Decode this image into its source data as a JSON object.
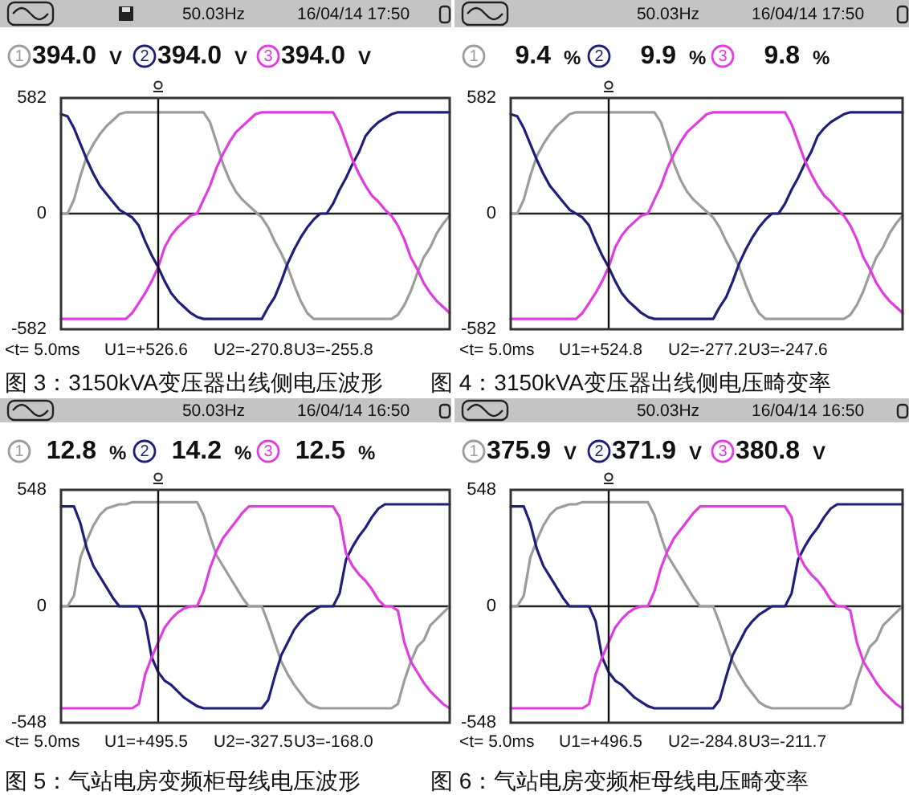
{
  "chart_data": [
    {
      "type": "line",
      "title": "图 3：3150kVA变压器出线侧电压波形",
      "categories": [
        null,
        null,
        null,
        null,
        null,
        null,
        null,
        null,
        null,
        null,
        null,
        null,
        null,
        null,
        null,
        null,
        null,
        null,
        null,
        null,
        null,
        null,
        null,
        null,
        null,
        null,
        null,
        null,
        null,
        null,
        null,
        null,
        null,
        null,
        null,
        null,
        null,
        null,
        null,
        null,
        null,
        null,
        null,
        null,
        null,
        null,
        null,
        null,
        null,
        null,
        null,
        null,
        null,
        null,
        null,
        null,
        null,
        null,
        null,
        null,
        null
      ],
      "series": [
        {
          "name": "1",
          "color": "#9c9c9c",
          "values": [
            0,
            0,
            70,
            190,
            290,
            350,
            400,
            440,
            470,
            500,
            510,
            510,
            510,
            510,
            510,
            510,
            510,
            510,
            510,
            510,
            510,
            510,
            510,
            460,
            360,
            250,
            170,
            110,
            70,
            40,
            10,
            -20,
            -70,
            -140,
            -200,
            -270,
            -360,
            -440,
            -500,
            -530,
            -530,
            -530,
            -530,
            -530,
            -530,
            -530,
            -530,
            -530,
            -530,
            -530,
            -530,
            -530,
            -510,
            -460,
            -390,
            -300,
            -220,
            -170,
            -100,
            -50,
            -10
          ]
        },
        {
          "name": "2",
          "color": "#1f1f7a",
          "values": [
            500,
            490,
            430,
            350,
            270,
            200,
            140,
            100,
            60,
            20,
            0,
            -20,
            -60,
            -140,
            -210,
            -270,
            -340,
            -400,
            -440,
            -470,
            -500,
            -520,
            -530,
            -530,
            -530,
            -530,
            -530,
            -530,
            -530,
            -530,
            -530,
            -530,
            -470,
            -420,
            -340,
            -250,
            -180,
            -120,
            -70,
            -30,
            0,
            0,
            50,
            120,
            180,
            250,
            310,
            390,
            430,
            460,
            480,
            500,
            510,
            510,
            510,
            510,
            510,
            510,
            510,
            510,
            510
          ]
        },
        {
          "name": "3",
          "color": "#e03ce0",
          "values": [
            -530,
            -530,
            -530,
            -530,
            -530,
            -530,
            -530,
            -530,
            -530,
            -530,
            -530,
            -500,
            -450,
            -400,
            -340,
            -270,
            -170,
            -110,
            -70,
            -40,
            -10,
            0,
            70,
            140,
            230,
            300,
            360,
            410,
            440,
            470,
            500,
            510,
            510,
            510,
            510,
            510,
            510,
            510,
            510,
            510,
            510,
            510,
            510,
            450,
            360,
            270,
            200,
            140,
            90,
            60,
            20,
            -10,
            -60,
            -130,
            -220,
            -280,
            -350,
            -400,
            -440,
            -470,
            -500
          ]
        }
      ],
      "ylim": [
        -582,
        582
      ],
      "yticks": [
        -582,
        0,
        582
      ],
      "tick_labels": "y",
      "legend": "top",
      "annotations": [
        "50.03Hz",
        "16/04/14 17:50",
        "394.0 V",
        "394.0 V",
        "394.0 V",
        "<t= 5.0ms",
        "U1=+526.6",
        "U2=-270.8",
        "U3=-255.8"
      ]
    },
    {
      "type": "line",
      "title": "图 4：3150kVA变压器出线侧电压畸变率",
      "categories": [
        null,
        null,
        null,
        null,
        null,
        null,
        null,
        null,
        null,
        null,
        null,
        null,
        null,
        null,
        null,
        null,
        null,
        null,
        null,
        null,
        null,
        null,
        null,
        null,
        null,
        null,
        null,
        null,
        null,
        null,
        null,
        null,
        null,
        null,
        null,
        null,
        null,
        null,
        null,
        null,
        null,
        null,
        null,
        null,
        null,
        null,
        null,
        null,
        null,
        null,
        null,
        null,
        null,
        null,
        null,
        null,
        null,
        null,
        null,
        null,
        null
      ],
      "series": [
        {
          "name": "1",
          "color": "#9c9c9c",
          "values": [
            0,
            0,
            70,
            190,
            290,
            350,
            400,
            440,
            470,
            500,
            510,
            510,
            510,
            510,
            510,
            510,
            510,
            510,
            510,
            510,
            510,
            510,
            510,
            460,
            360,
            250,
            170,
            110,
            70,
            40,
            10,
            -20,
            -70,
            -140,
            -200,
            -270,
            -360,
            -440,
            -500,
            -530,
            -530,
            -530,
            -530,
            -530,
            -530,
            -530,
            -530,
            -530,
            -530,
            -530,
            -530,
            -530,
            -510,
            -460,
            -390,
            -300,
            -220,
            -170,
            -100,
            -50,
            -10
          ]
        },
        {
          "name": "2",
          "color": "#1f1f7a",
          "values": [
            500,
            490,
            430,
            350,
            270,
            200,
            140,
            100,
            60,
            20,
            0,
            -20,
            -60,
            -140,
            -210,
            -270,
            -340,
            -400,
            -440,
            -470,
            -500,
            -520,
            -530,
            -530,
            -530,
            -530,
            -530,
            -530,
            -530,
            -530,
            -530,
            -530,
            -470,
            -420,
            -340,
            -250,
            -180,
            -120,
            -70,
            -30,
            0,
            0,
            50,
            120,
            180,
            250,
            310,
            390,
            430,
            460,
            480,
            500,
            510,
            510,
            510,
            510,
            510,
            510,
            510,
            510,
            510
          ]
        },
        {
          "name": "3",
          "color": "#e03ce0",
          "values": [
            -530,
            -530,
            -530,
            -530,
            -530,
            -530,
            -530,
            -530,
            -530,
            -530,
            -530,
            -500,
            -450,
            -400,
            -340,
            -270,
            -170,
            -110,
            -70,
            -40,
            -10,
            0,
            70,
            140,
            230,
            300,
            360,
            410,
            440,
            470,
            500,
            510,
            510,
            510,
            510,
            510,
            510,
            510,
            510,
            510,
            510,
            510,
            510,
            450,
            360,
            270,
            200,
            140,
            90,
            60,
            20,
            -10,
            -60,
            -130,
            -220,
            -280,
            -350,
            -400,
            -440,
            -470,
            -500
          ]
        }
      ],
      "ylim": [
        -582,
        582
      ],
      "yticks": [
        -582,
        0,
        582
      ],
      "tick_labels": "y",
      "legend": "top",
      "annotations": [
        "50.03Hz",
        "16/04/14 17:50",
        "9.4 %",
        "9.9 %",
        "9.8 %",
        "<t= 5.0ms",
        "U1=+524.8",
        "U2=-277.2",
        "U3=-247.6"
      ]
    },
    {
      "type": "line",
      "title": "图 5：气站电房变频柜母线电压波形",
      "categories": [
        null,
        null,
        null,
        null,
        null,
        null,
        null,
        null,
        null,
        null,
        null,
        null,
        null,
        null,
        null,
        null,
        null,
        null,
        null,
        null,
        null,
        null,
        null,
        null,
        null,
        null,
        null,
        null,
        null,
        null,
        null,
        null,
        null,
        null,
        null,
        null,
        null,
        null,
        null,
        null,
        null,
        null,
        null,
        null,
        null,
        null,
        null,
        null,
        null,
        null,
        null,
        null,
        null,
        null,
        null,
        null,
        null,
        null,
        null,
        null,
        null
      ],
      "series": [
        {
          "name": "1",
          "color": "#9c9c9c",
          "values": [
            0,
            0,
            50,
            230,
            310,
            380,
            430,
            460,
            470,
            480,
            480,
            490,
            490,
            490,
            490,
            490,
            490,
            490,
            490,
            490,
            490,
            490,
            430,
            330,
            240,
            190,
            140,
            90,
            40,
            0,
            0,
            0,
            -80,
            -170,
            -260,
            -320,
            -370,
            -410,
            -450,
            -470,
            -480,
            -480,
            -480,
            -480,
            -480,
            -480,
            -480,
            -480,
            -480,
            -480,
            -480,
            -480,
            -460,
            -350,
            -260,
            -190,
            -160,
            -90,
            -60,
            -30,
            0
          ]
        },
        {
          "name": "2",
          "color": "#1f1f7a",
          "values": [
            470,
            470,
            470,
            390,
            270,
            190,
            140,
            90,
            40,
            0,
            0,
            0,
            0,
            -70,
            -240,
            -310,
            -350,
            -370,
            -400,
            -430,
            -450,
            -470,
            -480,
            -480,
            -480,
            -480,
            -480,
            -480,
            -480,
            -480,
            -480,
            -480,
            -440,
            -330,
            -230,
            -170,
            -110,
            -70,
            -40,
            -20,
            0,
            0,
            0,
            60,
            220,
            280,
            330,
            370,
            420,
            460,
            480,
            480,
            480,
            480,
            480,
            480,
            480,
            480,
            480,
            480,
            480
          ]
        },
        {
          "name": "3",
          "color": "#e03ce0",
          "values": [
            -480,
            -480,
            -480,
            -480,
            -480,
            -480,
            -480,
            -480,
            -480,
            -480,
            -480,
            -480,
            -460,
            -320,
            -240,
            -170,
            -100,
            -60,
            -30,
            -10,
            0,
            0,
            70,
            180,
            260,
            320,
            360,
            400,
            440,
            470,
            470,
            470,
            470,
            470,
            470,
            470,
            470,
            470,
            470,
            470,
            470,
            470,
            470,
            420,
            250,
            190,
            150,
            120,
            80,
            30,
            0,
            0,
            -20,
            -170,
            -260,
            -310,
            -360,
            -400,
            -430,
            -460,
            -480
          ]
        }
      ],
      "ylim": [
        -548,
        548
      ],
      "yticks": [
        -548,
        0,
        548
      ],
      "tick_labels": "y",
      "legend": "top",
      "annotations": [
        "50.03Hz",
        "16/04/14 16:50",
        "12.8 %",
        "14.2 %",
        "12.5 %",
        "<t= 5.0ms",
        "U1=+495.5",
        "U2=-327.5",
        "U3=-168.0"
      ]
    },
    {
      "type": "line",
      "title": "图 6：气站电房变频柜母线电压畸变率",
      "categories": [
        null,
        null,
        null,
        null,
        null,
        null,
        null,
        null,
        null,
        null,
        null,
        null,
        null,
        null,
        null,
        null,
        null,
        null,
        null,
        null,
        null,
        null,
        null,
        null,
        null,
        null,
        null,
        null,
        null,
        null,
        null,
        null,
        null,
        null,
        null,
        null,
        null,
        null,
        null,
        null,
        null,
        null,
        null,
        null,
        null,
        null,
        null,
        null,
        null,
        null,
        null,
        null,
        null,
        null,
        null,
        null,
        null,
        null,
        null,
        null,
        null
      ],
      "series": [
        {
          "name": "1",
          "color": "#9c9c9c",
          "values": [
            0,
            0,
            50,
            230,
            310,
            380,
            430,
            460,
            470,
            480,
            480,
            490,
            490,
            490,
            490,
            490,
            490,
            490,
            490,
            490,
            490,
            490,
            430,
            330,
            240,
            190,
            140,
            90,
            40,
            0,
            0,
            0,
            -80,
            -170,
            -260,
            -320,
            -370,
            -410,
            -450,
            -470,
            -480,
            -480,
            -480,
            -480,
            -480,
            -480,
            -480,
            -480,
            -480,
            -480,
            -480,
            -480,
            -460,
            -350,
            -260,
            -190,
            -160,
            -90,
            -60,
            -30,
            0
          ]
        },
        {
          "name": "2",
          "color": "#1f1f7a",
          "values": [
            470,
            470,
            470,
            390,
            270,
            190,
            140,
            90,
            40,
            0,
            0,
            0,
            0,
            -70,
            -240,
            -310,
            -350,
            -370,
            -400,
            -430,
            -450,
            -470,
            -480,
            -480,
            -480,
            -480,
            -480,
            -480,
            -480,
            -480,
            -480,
            -480,
            -440,
            -330,
            -230,
            -170,
            -110,
            -70,
            -40,
            -20,
            0,
            0,
            0,
            60,
            220,
            280,
            330,
            370,
            420,
            460,
            480,
            480,
            480,
            480,
            480,
            480,
            480,
            480,
            480,
            480,
            480
          ]
        },
        {
          "name": "3",
          "color": "#e03ce0",
          "values": [
            -480,
            -480,
            -480,
            -480,
            -480,
            -480,
            -480,
            -480,
            -480,
            -480,
            -480,
            -480,
            -460,
            -320,
            -240,
            -170,
            -100,
            -60,
            -30,
            -10,
            0,
            0,
            70,
            180,
            260,
            320,
            360,
            400,
            440,
            470,
            470,
            470,
            470,
            470,
            470,
            470,
            470,
            470,
            470,
            470,
            470,
            470,
            470,
            420,
            250,
            190,
            150,
            120,
            80,
            30,
            0,
            0,
            -20,
            -170,
            -260,
            -310,
            -360,
            -400,
            -430,
            -460,
            -480
          ]
        }
      ],
      "ylim": [
        -548,
        548
      ],
      "yticks": [
        -548,
        0,
        548
      ],
      "tick_labels": "y",
      "legend": "top",
      "annotations": [
        "50.03Hz",
        "16/04/14 16:50",
        "375.9 V",
        "371.9 V",
        "380.8 V",
        "<t= 5.0ms",
        "U1=+496.5",
        "U2=-284.8",
        "U3=-211.7"
      ]
    }
  ]
}
